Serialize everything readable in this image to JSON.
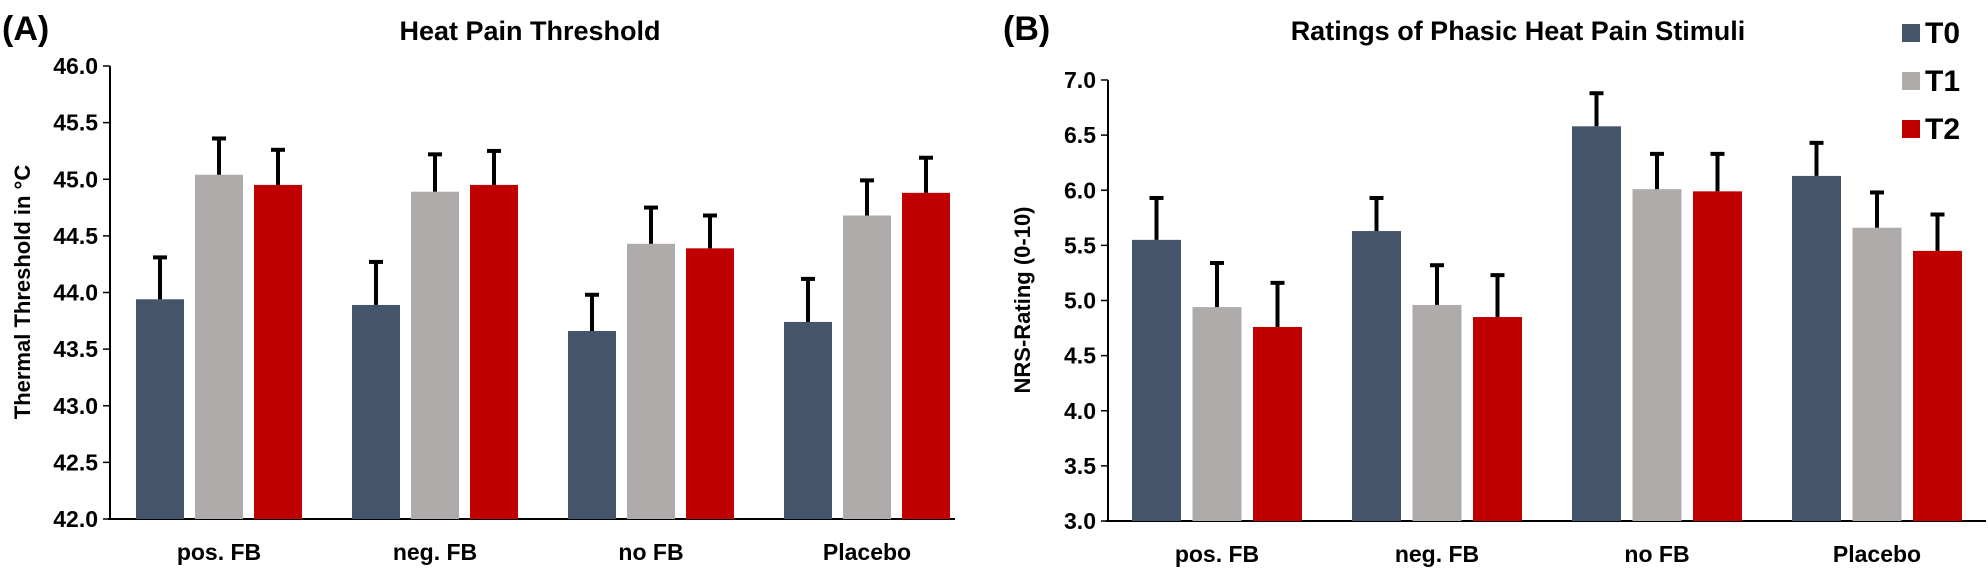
{
  "chart_data": [
    {
      "type": "bar",
      "panel_label": "(A)",
      "title": "Heat Pain Threshold",
      "xlabel": "",
      "ylabel": "Thermal Threshold in °C",
      "ylim": [
        42.0,
        46.0
      ],
      "yticks": [
        "42.0",
        "42.5",
        "43.0",
        "43.5",
        "44.0",
        "44.5",
        "45.0",
        "45.5",
        "46.0"
      ],
      "categories": [
        "pos. FB",
        "neg. FB",
        "no FB",
        "Placebo"
      ],
      "series": [
        {
          "name": "T0",
          "color": "#44546a",
          "values": [
            43.94,
            43.89,
            43.66,
            43.74
          ],
          "error": [
            0.37,
            0.38,
            0.32,
            0.38
          ]
        },
        {
          "name": "T1",
          "color": "#afabab",
          "values": [
            45.04,
            44.89,
            44.43,
            44.68
          ],
          "error": [
            0.32,
            0.33,
            0.32,
            0.31
          ]
        },
        {
          "name": "T2",
          "color": "#c00000",
          "values": [
            44.95,
            44.95,
            44.39,
            44.88
          ],
          "error": [
            0.31,
            0.3,
            0.29,
            0.31
          ]
        }
      ],
      "grid": false,
      "legend": "none"
    },
    {
      "type": "bar",
      "panel_label": "(B)",
      "title": "Ratings of Phasic Heat Pain Stimuli",
      "xlabel": "",
      "ylabel": "NRS-Rating (0-10)",
      "ylim": [
        3.0,
        7.0
      ],
      "yticks": [
        "3.0",
        "3.5",
        "4.0",
        "4.5",
        "5.0",
        "5.5",
        "6.0",
        "6.5",
        "7.0"
      ],
      "categories": [
        "pos. FB",
        "neg. FB",
        "no FB",
        "Placebo"
      ],
      "series": [
        {
          "name": "T0",
          "color": "#44546a",
          "values": [
            5.55,
            5.63,
            6.58,
            6.13
          ],
          "error": [
            0.38,
            0.3,
            0.3,
            0.3
          ]
        },
        {
          "name": "T1",
          "color": "#afabab",
          "values": [
            4.94,
            4.96,
            6.01,
            5.66
          ],
          "error": [
            0.4,
            0.36,
            0.32,
            0.32
          ]
        },
        {
          "name": "T2",
          "color": "#c00000",
          "values": [
            4.76,
            4.85,
            5.99,
            5.45
          ],
          "error": [
            0.4,
            0.38,
            0.34,
            0.33
          ]
        }
      ],
      "grid": false,
      "legend": "top-right"
    }
  ]
}
